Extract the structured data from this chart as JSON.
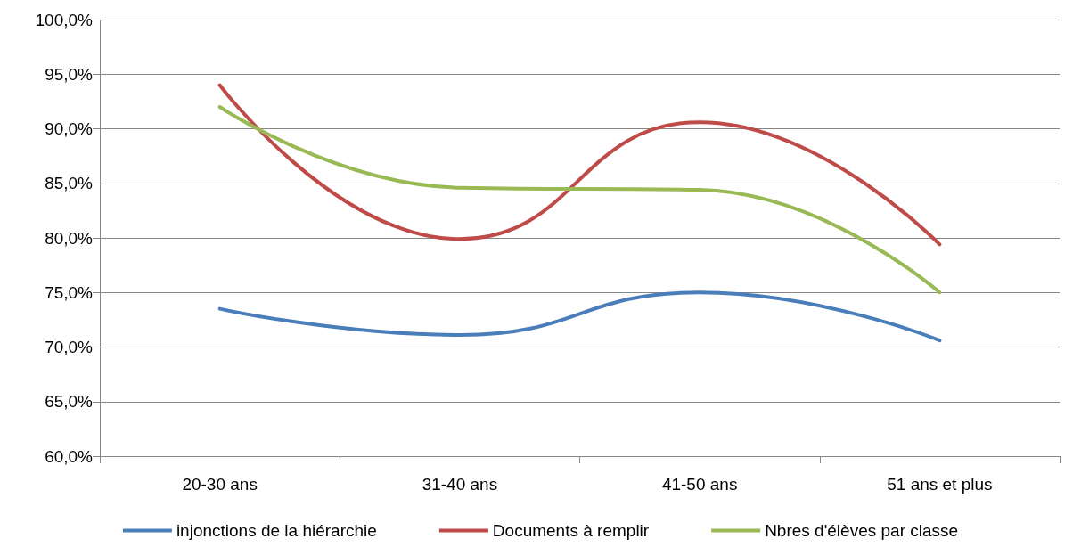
{
  "chart_data": {
    "type": "line",
    "categories": [
      "20-30 ans",
      "31-40 ans",
      "41-50 ans",
      "51 ans et plus"
    ],
    "series": [
      {
        "name": "injonctions de la hiérarchie",
        "color": "#4a7ebb",
        "values": [
          73.5,
          71.1,
          75.0,
          70.6
        ]
      },
      {
        "name": "Documents à remplir",
        "color": "#be4b48",
        "values": [
          94.0,
          79.9,
          90.6,
          79.4
        ]
      },
      {
        "name": "Nbres d'élèves par classe",
        "color": "#98b954",
        "values": [
          92.0,
          84.6,
          84.4,
          75.0
        ]
      }
    ],
    "ylim": [
      60,
      100
    ],
    "yticks": [
      {
        "value": 60,
        "label": "60,0%"
      },
      {
        "value": 65,
        "label": "65,0%"
      },
      {
        "value": 70,
        "label": "70,0%"
      },
      {
        "value": 75,
        "label": "75,0%"
      },
      {
        "value": 80,
        "label": "80,0%"
      },
      {
        "value": 85,
        "label": "85,0%"
      },
      {
        "value": 90,
        "label": "90,0%"
      },
      {
        "value": 95,
        "label": "95,0%"
      },
      {
        "value": 100,
        "label": "100,0%"
      }
    ],
    "grid": "y",
    "legend": "bottom",
    "marker": "none",
    "line_style": "solid"
  }
}
